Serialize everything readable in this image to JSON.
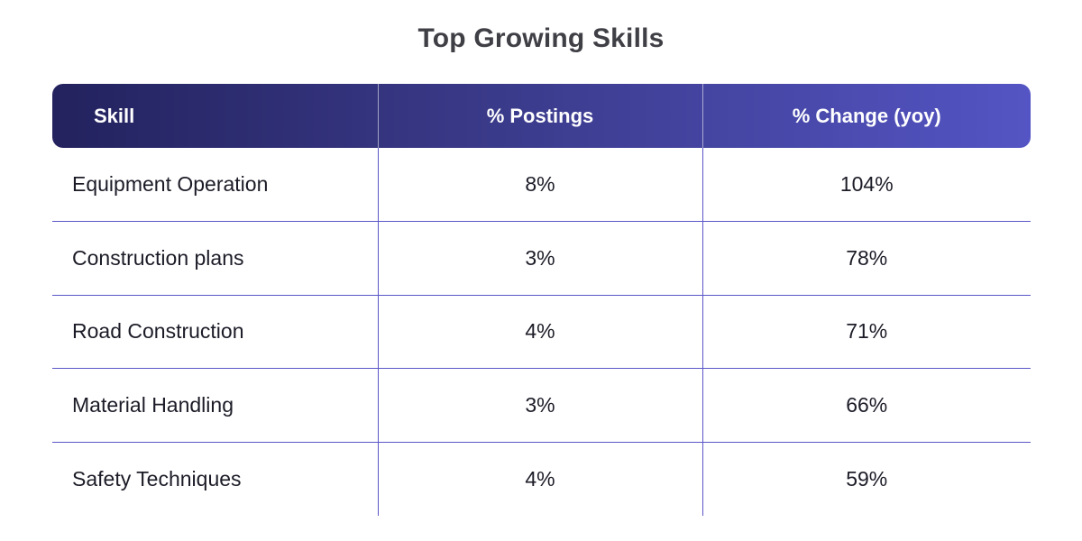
{
  "chart_data": {
    "type": "table",
    "title": "Top Growing Skills",
    "columns": [
      "Skill",
      "% Postings",
      "% Change (yoy)"
    ],
    "rows": [
      [
        "Equipment Operation",
        "8%",
        "104%"
      ],
      [
        "Construction plans",
        "3%",
        "78%"
      ],
      [
        "Road Construction",
        "4%",
        "71%"
      ],
      [
        "Material Handling",
        "3%",
        "66%"
      ],
      [
        "Safety Techniques",
        "4%",
        "59%"
      ]
    ]
  },
  "colors": {
    "header_gradient_start": "#23225e",
    "header_gradient_end": "#5454c4",
    "grid_line": "#5a56c8",
    "title": "#3f3f46"
  }
}
